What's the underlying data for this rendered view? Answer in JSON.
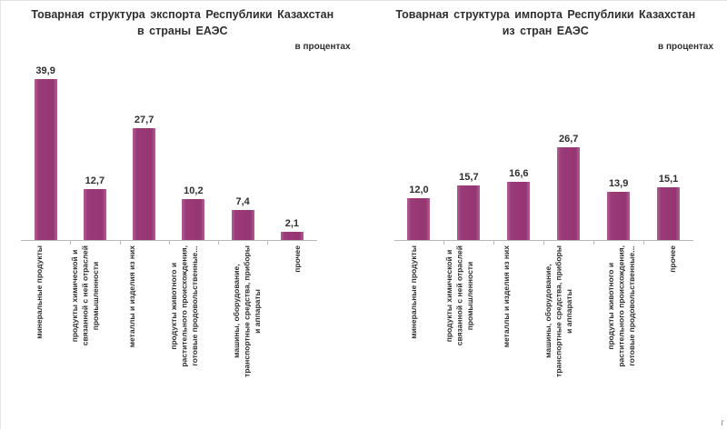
{
  "page": {
    "corner_text": "г"
  },
  "colors": {
    "bar_fill": "#9a3a78",
    "bar_edge_highlight": "#b06093",
    "axis_line": "#b8b8b8",
    "text": "#2f2f2f"
  },
  "chart_data": [
    {
      "type": "bar",
      "title": "Товарная структура экспорта Республики Казахстан в страны ЕАЭС",
      "title_line1": "Товарная структура экспорта Республики Казахстан",
      "title_line2": "в страны ЕАЭС",
      "units_label": "в процентах",
      "categories": [
        "минеральные продукты",
        "продукты химической и\nсвязанной с ней отраслей\nпромышленности",
        "металлы и изделия из них",
        "продукты животного и\nрастительного происхождения,\nготовые продовольственные...",
        "машины, оборудование,\nтранспортные средства, приборы\nи аппараты",
        "прочее"
      ],
      "values": [
        39.9,
        12.7,
        27.7,
        10.2,
        7.4,
        2.1
      ],
      "value_labels": [
        "39,9",
        "12,7",
        "27,7",
        "10,2",
        "7,4",
        "2,1"
      ],
      "xlabel": "",
      "ylabel": "",
      "ylim": [
        0,
        45
      ],
      "grid": false,
      "legend": "none"
    },
    {
      "type": "bar",
      "title": "Товарная структура импорта Республики Казахстан из стран ЕАЭС",
      "title_line1": "Товарная структура импорта Республики Казахстан",
      "title_line2": "из стран ЕАЭС",
      "units_label": "в процентах",
      "categories": [
        "минеральные продукты",
        "продукты химической и\nсвязанной с ней отраслей\nпромышленности",
        "металлы и изделия из них",
        "машины, оборудование,\nтранспортные средства, приборы\nи аппараты",
        "продукты животного и\nрастительного происхождения,\nготовые продовольственные...",
        "прочее"
      ],
      "values": [
        12.0,
        15.7,
        16.6,
        26.7,
        13.9,
        15.1
      ],
      "value_labels": [
        "12,0",
        "15,7",
        "16,6",
        "26,7",
        "13,9",
        "15,1"
      ],
      "xlabel": "",
      "ylabel": "",
      "ylim": [
        0,
        30
      ],
      "grid": false,
      "legend": "none"
    }
  ]
}
